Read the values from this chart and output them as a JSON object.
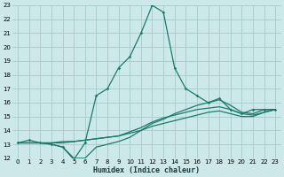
{
  "xlabel": "Humidex (Indice chaleur)",
  "bg_color": "#cce8e8",
  "grid_color": "#aacfcf",
  "line_color": "#1a7a6e",
  "xlim": [
    -0.5,
    23.5
  ],
  "ylim": [
    12,
    23
  ],
  "xticks": [
    0,
    1,
    2,
    3,
    4,
    5,
    6,
    7,
    8,
    9,
    10,
    11,
    12,
    13,
    14,
    15,
    16,
    17,
    18,
    19,
    20,
    21,
    22,
    23
  ],
  "yticks": [
    12,
    13,
    14,
    15,
    16,
    17,
    18,
    19,
    20,
    21,
    22,
    23
  ],
  "series_main": [
    13.1,
    13.3,
    13.1,
    13.0,
    12.8,
    11.9,
    13.1,
    16.5,
    17.0,
    18.5,
    19.3,
    21.0,
    23.0,
    22.5,
    18.5,
    17.0,
    16.5,
    16.0,
    16.3,
    15.5,
    15.2,
    15.5,
    15.5,
    15.5
  ],
  "series_flat1": [
    13.1,
    13.1,
    13.1,
    13.0,
    12.8,
    12.0,
    12.0,
    12.8,
    13.0,
    13.2,
    13.5,
    14.0,
    14.5,
    14.8,
    15.2,
    15.5,
    15.8,
    16.0,
    16.2,
    15.8,
    15.3,
    15.2,
    15.5,
    15.5
  ],
  "series_flat2": [
    13.1,
    13.1,
    13.1,
    13.1,
    13.2,
    13.2,
    13.3,
    13.4,
    13.5,
    13.6,
    13.8,
    14.0,
    14.3,
    14.5,
    14.7,
    14.9,
    15.1,
    15.3,
    15.4,
    15.2,
    15.0,
    15.0,
    15.3,
    15.5
  ],
  "series_flat3": [
    13.1,
    13.1,
    13.1,
    13.1,
    13.1,
    13.2,
    13.3,
    13.4,
    13.5,
    13.6,
    13.9,
    14.2,
    14.6,
    14.9,
    15.1,
    15.3,
    15.5,
    15.6,
    15.7,
    15.5,
    15.2,
    15.1,
    15.3,
    15.5
  ]
}
